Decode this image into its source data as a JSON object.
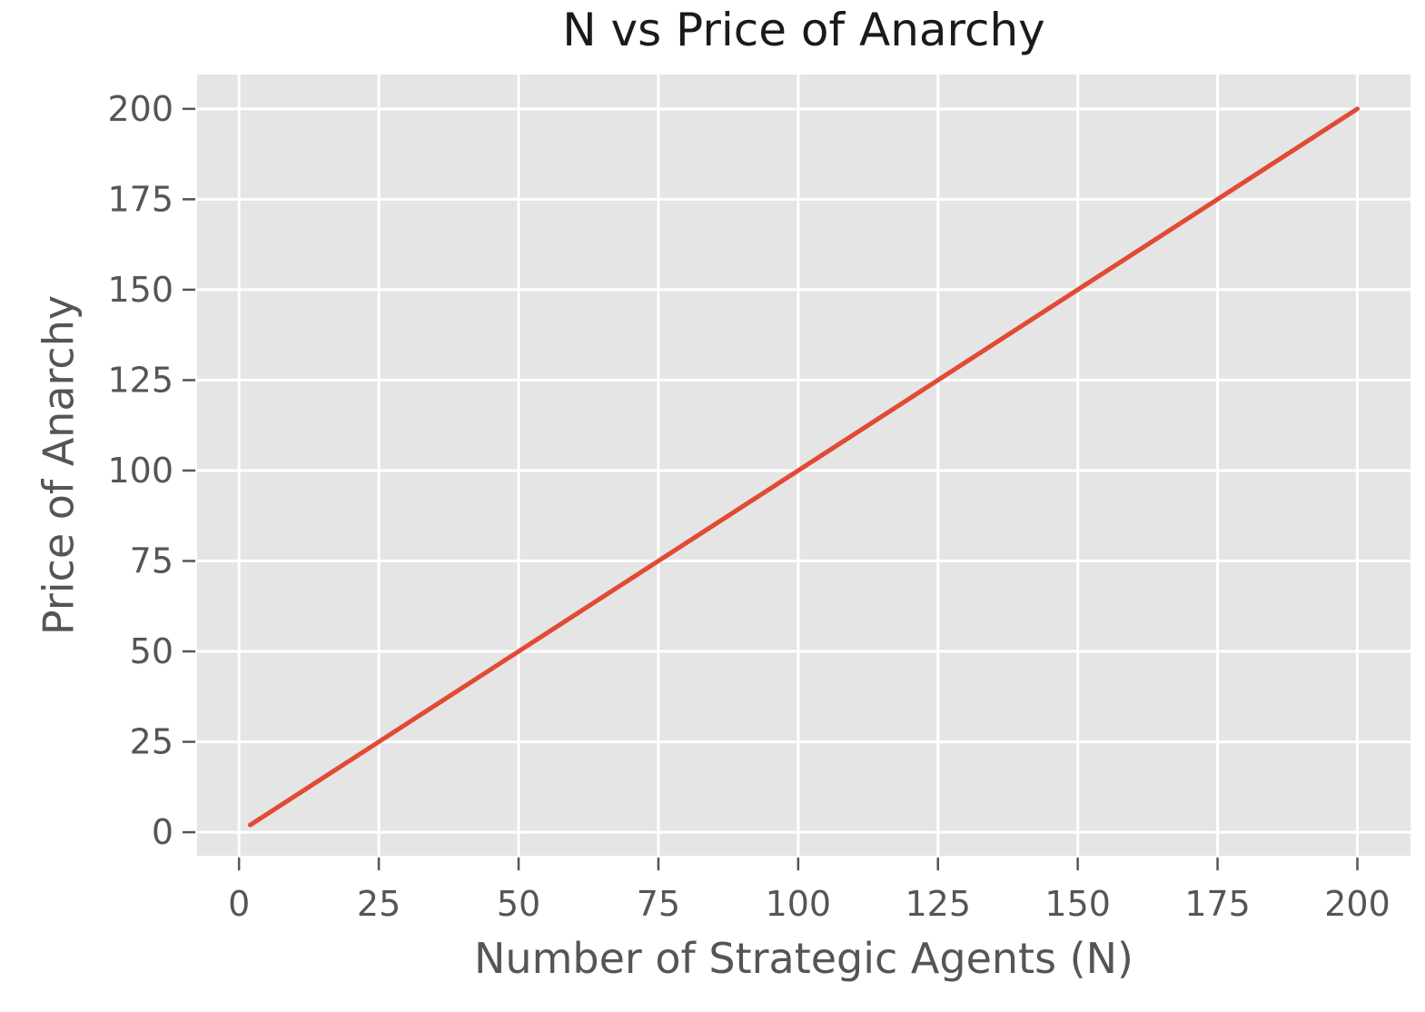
{
  "figure": {
    "title": "N vs Price of Anarchy",
    "xlabel": "Number of Strategic Agents (N)",
    "ylabel": "Price of Anarchy"
  },
  "chart_data": {
    "type": "line",
    "title": "N vs Price of Anarchy",
    "xlabel": "Number of Strategic Agents (N)",
    "ylabel": "Price of Anarchy",
    "series": [
      {
        "name": "Price of Anarchy",
        "x": [
          2,
          200
        ],
        "y": [
          2,
          200
        ],
        "color": "#E24A33",
        "linewidth": 5
      }
    ],
    "xticks": [
      0,
      25,
      50,
      75,
      100,
      125,
      150,
      175,
      200
    ],
    "yticks": [
      0,
      25,
      50,
      75,
      100,
      125,
      150,
      175,
      200
    ],
    "xlim": [
      -7.5,
      209.5
    ],
    "ylim": [
      -6.5,
      209.5
    ],
    "grid": true,
    "legend": false,
    "style": {
      "figure_bg": "#FFFFFF",
      "plot_bg": "#E5E5E5",
      "grid_color": "#FFFFFF",
      "tick_color": "#555555",
      "tick_label_color": "#555555",
      "axis_label_color": "#555555",
      "title_color": "#1A1A1A",
      "tick_font_size": 38
    }
  }
}
